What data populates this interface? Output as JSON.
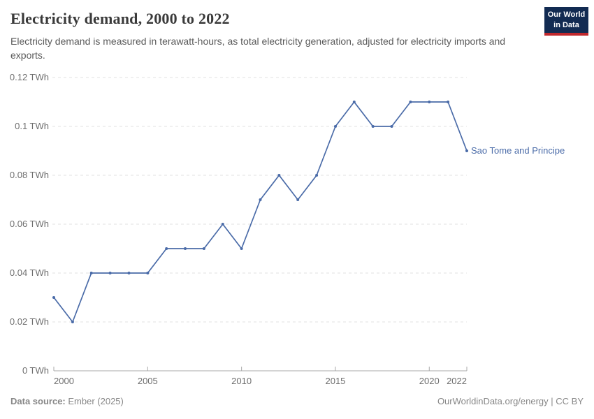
{
  "header": {
    "title": "Electricity demand, 2000 to 2022",
    "subtitle": "Electricity demand is measured in terawatt-hours, as total electricity generation, adjusted for electricity imports and exports.",
    "logo": {
      "line1": "Our World",
      "line2": "in Data",
      "bg_color": "#122b52",
      "accent_color": "#c0282d"
    }
  },
  "chart_data": {
    "type": "line",
    "title": "Electricity demand, 2000 to 2022",
    "unit": "TWh",
    "xlabel": "",
    "ylabel": "TWh",
    "xlim": [
      2000,
      2022
    ],
    "ylim": [
      0,
      0.12
    ],
    "grid": true,
    "grid_style": "dashed",
    "legend_position": "end-of-line-label",
    "x_ticks": [
      {
        "value": 2000,
        "label": "2000"
      },
      {
        "value": 2005,
        "label": "2005"
      },
      {
        "value": 2010,
        "label": "2010"
      },
      {
        "value": 2015,
        "label": "2015"
      },
      {
        "value": 2020,
        "label": "2020"
      },
      {
        "value": 2022,
        "label": "2022"
      }
    ],
    "y_ticks": [
      {
        "value": 0,
        "label": "0 TWh"
      },
      {
        "value": 0.02,
        "label": "0.02 TWh"
      },
      {
        "value": 0.04,
        "label": "0.04 TWh"
      },
      {
        "value": 0.06,
        "label": "0.06 TWh"
      },
      {
        "value": 0.08,
        "label": "0.08 TWh"
      },
      {
        "value": 0.1,
        "label": "0.1 TWh"
      },
      {
        "value": 0.12,
        "label": "0.12 TWh"
      }
    ],
    "series": [
      {
        "name": "Sao Tome and Principe",
        "color": "#4a6ba8",
        "x": [
          2000,
          2001,
          2002,
          2003,
          2004,
          2005,
          2006,
          2007,
          2008,
          2009,
          2010,
          2011,
          2012,
          2013,
          2014,
          2015,
          2016,
          2017,
          2018,
          2019,
          2020,
          2021,
          2022
        ],
        "values": [
          0.03,
          0.02,
          0.04,
          0.04,
          0.04,
          0.04,
          0.05,
          0.05,
          0.05,
          0.06,
          0.05,
          0.07,
          0.08,
          0.07,
          0.08,
          0.1,
          0.11,
          0.1,
          0.1,
          0.11,
          0.11,
          0.11,
          0.09
        ]
      }
    ]
  },
  "footer": {
    "source_label": "Data source:",
    "source_value": "Ember (2025)",
    "rights": "OurWorldinData.org/energy | CC BY"
  },
  "colors": {
    "line": "#4a6ba8",
    "gridline": "#e0e0e0",
    "axis": "#a8a8a8",
    "tick_label": "#6e6e6e",
    "title": "#3a3a3a",
    "subtitle": "#595959",
    "footer_text": "#878787"
  }
}
